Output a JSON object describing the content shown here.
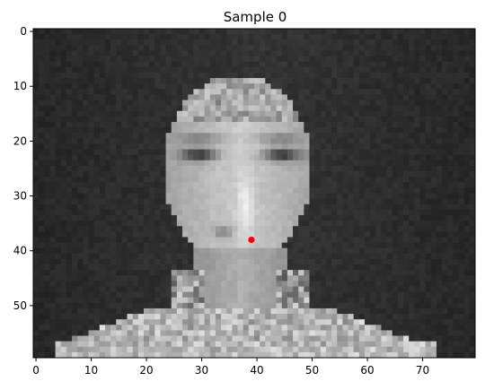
{
  "figure": {
    "title": "Sample 0",
    "image": {
      "cols": 80,
      "rows": 60,
      "colormap": "gray",
      "subject": "grayscale face portrait"
    },
    "marker": {
      "x": 39,
      "y": 38,
      "color": "#ff0000"
    },
    "x_ticks": [
      0,
      10,
      20,
      30,
      40,
      50,
      60,
      70
    ],
    "y_ticks": [
      0,
      10,
      20,
      30,
      40,
      50
    ],
    "x_range": [
      -0.5,
      79.5
    ],
    "y_range": [
      -0.5,
      59.5
    ]
  }
}
